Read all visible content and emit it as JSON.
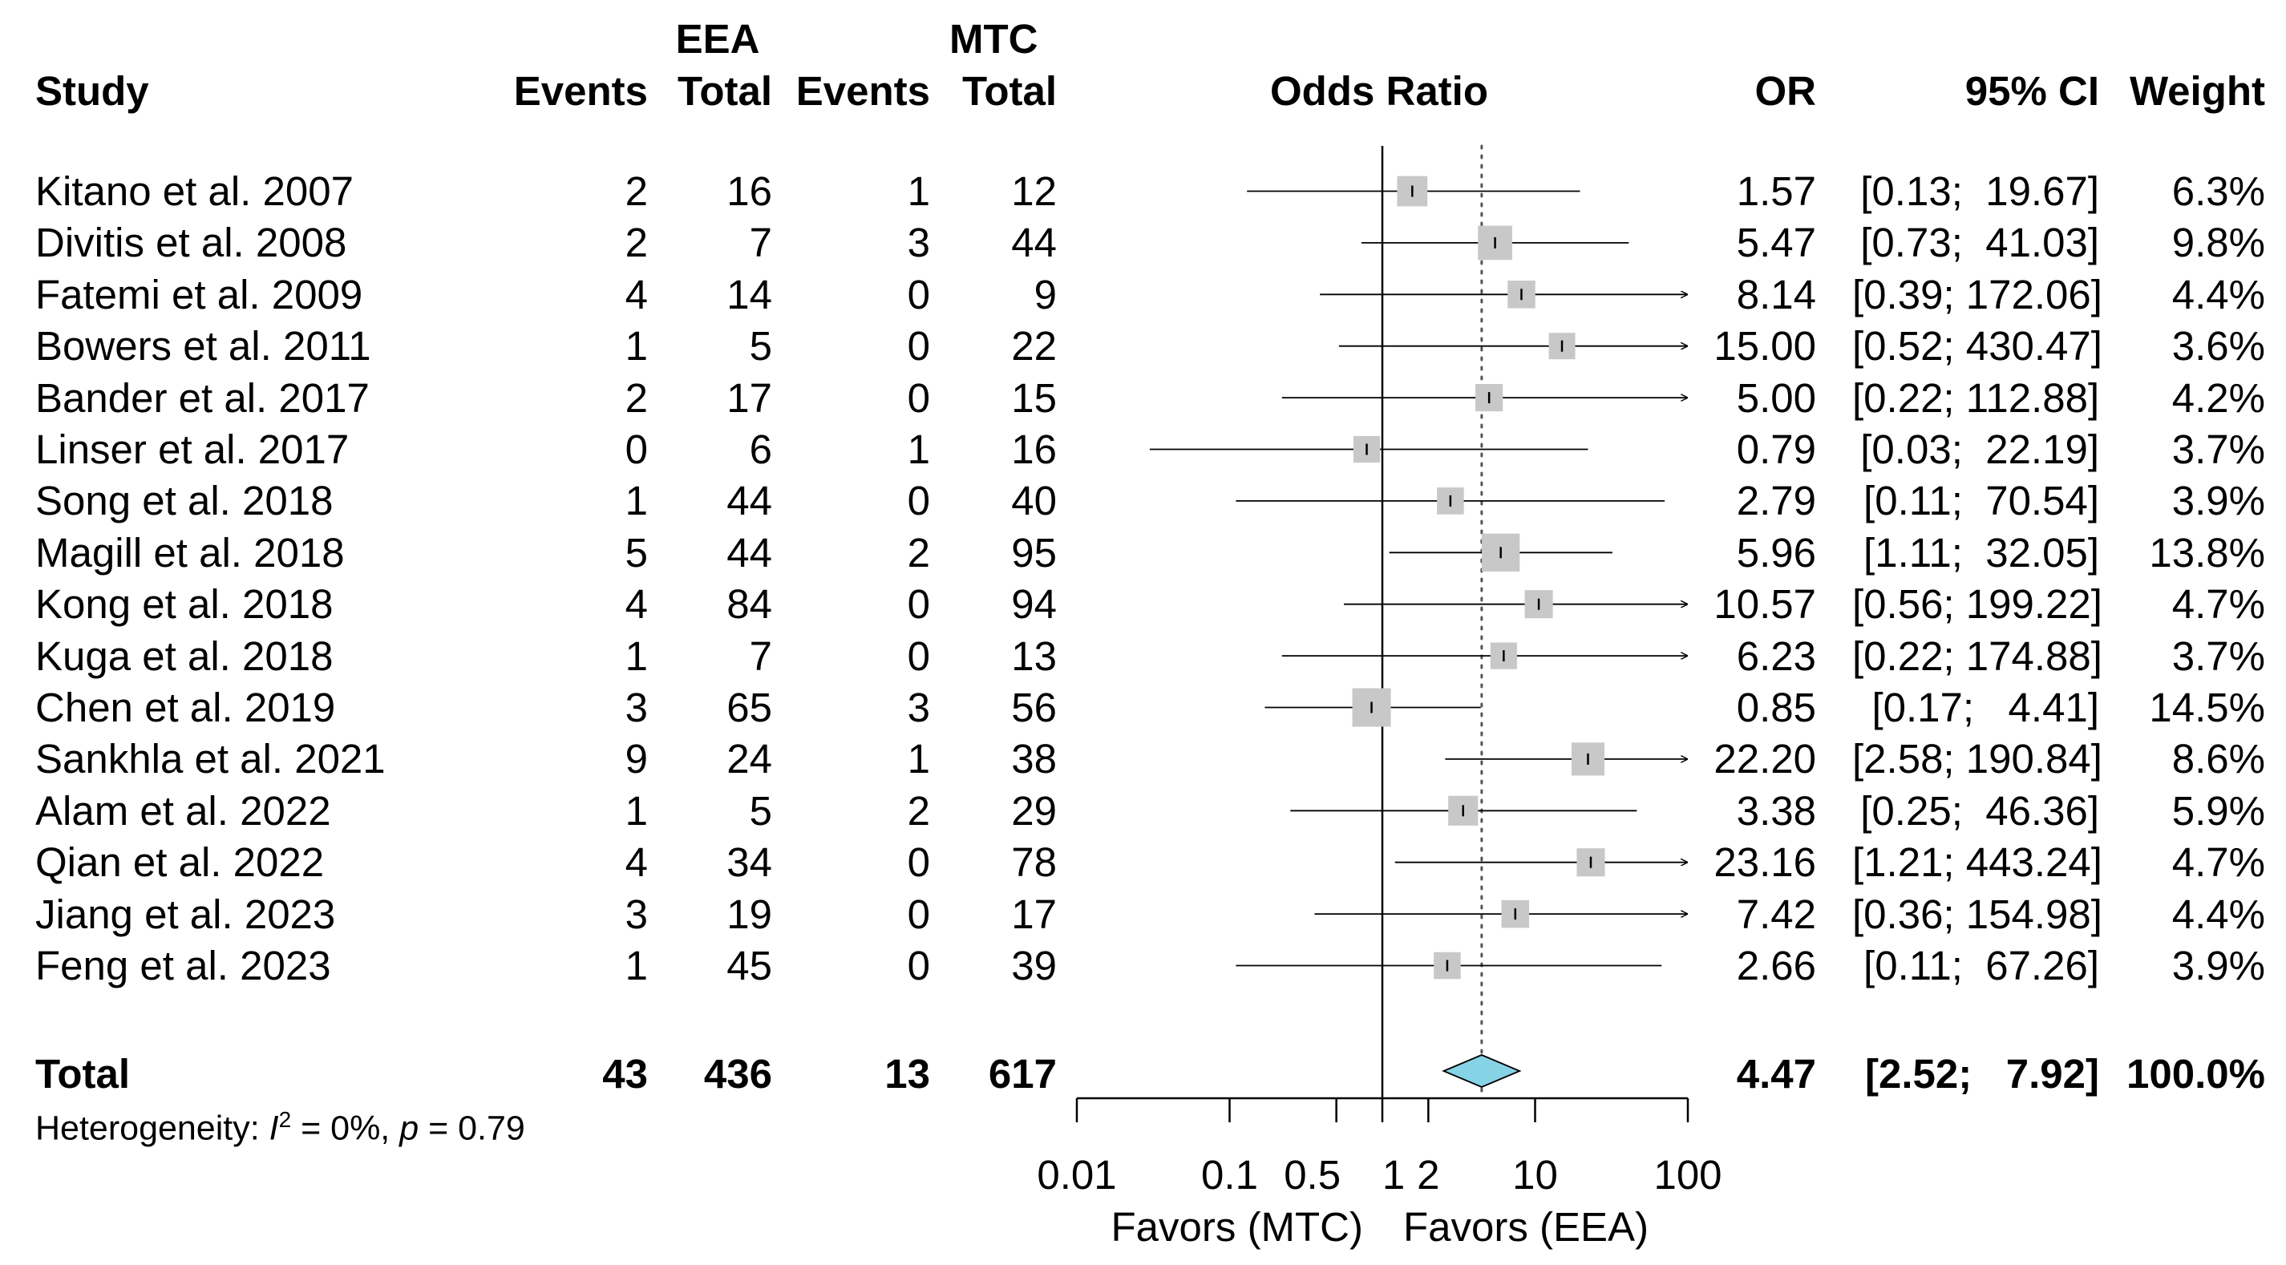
{
  "headers": {
    "study": "Study",
    "group1": "EEA",
    "group2": "MTC",
    "events": "Events",
    "total": "Total",
    "plot": "Odds Ratio",
    "or": "OR",
    "ci": "95% CI",
    "weight": "Weight"
  },
  "studies": [
    {
      "name": "Kitano et al. 2007",
      "e1": "2",
      "n1": "16",
      "e2": "1",
      "n2": "12",
      "or": "1.57",
      "ci": "[0.13;  19.67]",
      "weight": "6.3%"
    },
    {
      "name": "Divitis et al. 2008",
      "e1": "2",
      "n1": "7",
      "e2": "3",
      "n2": "44",
      "or": "5.47",
      "ci": "[0.73;  41.03]",
      "weight": "9.8%"
    },
    {
      "name": "Fatemi et al. 2009",
      "e1": "4",
      "n1": "14",
      "e2": "0",
      "n2": "9",
      "or": "8.14",
      "ci": "[0.39; 172.06]",
      "weight": "4.4%"
    },
    {
      "name": "Bowers et al. 2011",
      "e1": "1",
      "n1": "5",
      "e2": "0",
      "n2": "22",
      "or": "15.00",
      "ci": "[0.52; 430.47]",
      "weight": "3.6%"
    },
    {
      "name": "Bander et al. 2017",
      "e1": "2",
      "n1": "17",
      "e2": "0",
      "n2": "15",
      "or": "5.00",
      "ci": "[0.22; 112.88]",
      "weight": "4.2%"
    },
    {
      "name": "Linser et al. 2017",
      "e1": "0",
      "n1": "6",
      "e2": "1",
      "n2": "16",
      "or": "0.79",
      "ci": "[0.03;  22.19]",
      "weight": "3.7%"
    },
    {
      "name": "Song et al. 2018",
      "e1": "1",
      "n1": "44",
      "e2": "0",
      "n2": "40",
      "or": "2.79",
      "ci": "[0.11;  70.54]",
      "weight": "3.9%"
    },
    {
      "name": "Magill et al. 2018",
      "e1": "5",
      "n1": "44",
      "e2": "2",
      "n2": "95",
      "or": "5.96",
      "ci": "[1.11;  32.05]",
      "weight": "13.8%"
    },
    {
      "name": "Kong et al. 2018",
      "e1": "4",
      "n1": "84",
      "e2": "0",
      "n2": "94",
      "or": "10.57",
      "ci": "[0.56; 199.22]",
      "weight": "4.7%"
    },
    {
      "name": "Kuga et al. 2018",
      "e1": "1",
      "n1": "7",
      "e2": "0",
      "n2": "13",
      "or": "6.23",
      "ci": "[0.22; 174.88]",
      "weight": "3.7%"
    },
    {
      "name": "Chen et al. 2019",
      "e1": "3",
      "n1": "65",
      "e2": "3",
      "n2": "56",
      "or": "0.85",
      "ci": "[0.17;   4.41]",
      "weight": "14.5%"
    },
    {
      "name": "Sankhla et al. 2021",
      "e1": "9",
      "n1": "24",
      "e2": "1",
      "n2": "38",
      "or": "22.20",
      "ci": "[2.58; 190.84]",
      "weight": "8.6%"
    },
    {
      "name": "Alam et al. 2022",
      "e1": "1",
      "n1": "5",
      "e2": "2",
      "n2": "29",
      "or": "3.38",
      "ci": "[0.25;  46.36]",
      "weight": "5.9%"
    },
    {
      "name": "Qian et al. 2022",
      "e1": "4",
      "n1": "34",
      "e2": "0",
      "n2": "78",
      "or": "23.16",
      "ci": "[1.21; 443.24]",
      "weight": "4.7%"
    },
    {
      "name": "Jiang et al. 2023",
      "e1": "3",
      "n1": "19",
      "e2": "0",
      "n2": "17",
      "or": "7.42",
      "ci": "[0.36; 154.98]",
      "weight": "4.4%"
    },
    {
      "name": "Feng et al. 2023",
      "e1": "1",
      "n1": "45",
      "e2": "0",
      "n2": "39",
      "or": "2.66",
      "ci": "[0.11;  67.26]",
      "weight": "3.9%"
    }
  ],
  "total": {
    "label": "Total",
    "e1": "43",
    "n1": "436",
    "e2": "13",
    "n2": "617",
    "or": "4.47",
    "ci": "[2.52;   7.92]",
    "weight": "100.0%"
  },
  "heterogeneity": {
    "prefix": "Heterogeneity: ",
    "i2_symbol": "I",
    "i2_sup": "2",
    "i2_text": " = 0%, ",
    "p_symbol": "p",
    "p_text": " = 0.79"
  },
  "axis": {
    "ticks": [
      "0.01",
      "0.1",
      "0.5",
      "1",
      "2",
      "10",
      "100"
    ],
    "favors_left": "Favors (MTC)",
    "favors_right": "Favors (EEA)"
  },
  "colors": {
    "square": "#c8c8c8",
    "diamond": "#87d3e6",
    "line": "#000000"
  },
  "chart_data": {
    "type": "forest",
    "title": "Odds Ratio",
    "xscale": "log",
    "xlim": [
      0.01,
      100
    ],
    "null_value": 1,
    "pooled": {
      "or": 4.47,
      "lower": 2.52,
      "upper": 7.92
    },
    "series": [
      {
        "name": "Kitano et al. 2007",
        "or": 1.57,
        "lower": 0.13,
        "upper": 19.67,
        "weight": 6.3
      },
      {
        "name": "Divitis et al. 2008",
        "or": 5.47,
        "lower": 0.73,
        "upper": 41.03,
        "weight": 9.8
      },
      {
        "name": "Fatemi et al. 2009",
        "or": 8.14,
        "lower": 0.39,
        "upper": 172.06,
        "weight": 4.4
      },
      {
        "name": "Bowers et al. 2011",
        "or": 15.0,
        "lower": 0.52,
        "upper": 430.47,
        "weight": 3.6
      },
      {
        "name": "Bander et al. 2017",
        "or": 5.0,
        "lower": 0.22,
        "upper": 112.88,
        "weight": 4.2
      },
      {
        "name": "Linser et al. 2017",
        "or": 0.79,
        "lower": 0.03,
        "upper": 22.19,
        "weight": 3.7
      },
      {
        "name": "Song et al. 2018",
        "or": 2.79,
        "lower": 0.11,
        "upper": 70.54,
        "weight": 3.9
      },
      {
        "name": "Magill et al. 2018",
        "or": 5.96,
        "lower": 1.11,
        "upper": 32.05,
        "weight": 13.8
      },
      {
        "name": "Kong et al. 2018",
        "or": 10.57,
        "lower": 0.56,
        "upper": 199.22,
        "weight": 4.7
      },
      {
        "name": "Kuga et al. 2018",
        "or": 6.23,
        "lower": 0.22,
        "upper": 174.88,
        "weight": 3.7
      },
      {
        "name": "Chen et al. 2019",
        "or": 0.85,
        "lower": 0.17,
        "upper": 4.41,
        "weight": 14.5
      },
      {
        "name": "Sankhla et al. 2021",
        "or": 22.2,
        "lower": 2.58,
        "upper": 190.84,
        "weight": 8.6
      },
      {
        "name": "Alam et al. 2022",
        "or": 3.38,
        "lower": 0.25,
        "upper": 46.36,
        "weight": 5.9
      },
      {
        "name": "Qian et al. 2022",
        "or": 23.16,
        "lower": 1.21,
        "upper": 443.24,
        "weight": 4.7
      },
      {
        "name": "Jiang et al. 2023",
        "or": 7.42,
        "lower": 0.36,
        "upper": 154.98,
        "weight": 4.4
      },
      {
        "name": "Feng et al. 2023",
        "or": 2.66,
        "lower": 0.11,
        "upper": 67.26,
        "weight": 3.9
      }
    ]
  }
}
